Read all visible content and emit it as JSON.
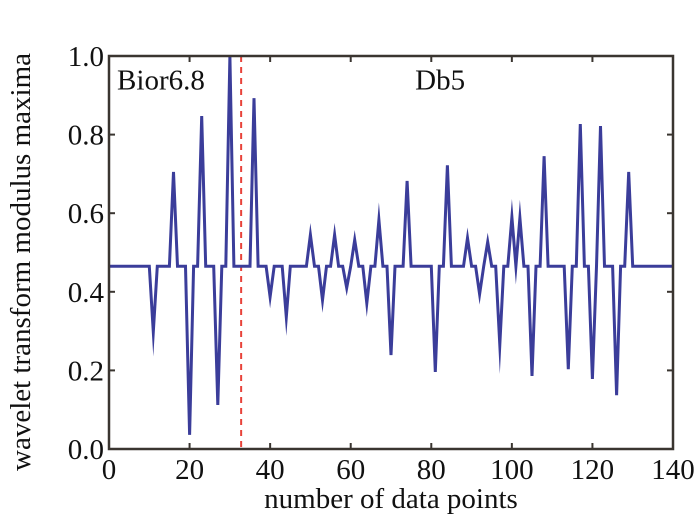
{
  "chart_data": {
    "type": "line",
    "title": "",
    "xlabel": "number of data points",
    "ylabel": "wavelet transform modulus maxima",
    "xlim": [
      0,
      140
    ],
    "ylim": [
      0.0,
      1.0
    ],
    "xticks": [
      0,
      20,
      40,
      60,
      80,
      100,
      120,
      140
    ],
    "xtick_labels": [
      "0",
      "20",
      "40",
      "60",
      "80",
      "100",
      "120",
      "140"
    ],
    "yticks": [
      0.0,
      0.2,
      0.4,
      0.6,
      0.8,
      1.0
    ],
    "ytick_labels": [
      "0.0",
      "0.2",
      "0.4",
      "0.6",
      "0.8",
      "1.0"
    ],
    "grid": false,
    "annotations": [
      {
        "text": "Bior6.8",
        "x": 2,
        "y": 0.94
      },
      {
        "text": "Db5",
        "x": 76,
        "y": 0.94
      }
    ],
    "divider": {
      "x": 32.8,
      "style": "dashed",
      "color": "#e8423a"
    },
    "series": [
      {
        "name": "modulus maxima",
        "color": "#3b3d9a",
        "x": [
          0,
          1,
          2,
          3,
          4,
          5,
          6,
          7,
          8,
          9,
          10,
          11,
          12,
          13,
          14,
          15,
          16,
          17,
          18,
          19,
          20,
          21,
          22,
          23,
          24,
          25,
          26,
          27,
          28,
          29,
          30,
          31,
          32,
          33,
          34,
          35,
          36,
          37,
          38,
          39,
          40,
          41,
          42,
          43,
          44,
          45,
          46,
          47,
          48,
          49,
          50,
          51,
          52,
          53,
          54,
          55,
          56,
          57,
          58,
          59,
          60,
          61,
          62,
          63,
          64,
          65,
          66,
          67,
          68,
          69,
          70,
          71,
          72,
          73,
          74,
          75,
          76,
          77,
          78,
          79,
          80,
          81,
          82,
          83,
          84,
          85,
          86,
          87,
          88,
          89,
          90,
          91,
          92,
          93,
          94,
          95,
          96,
          97,
          98,
          99,
          100,
          101,
          102,
          103,
          104,
          105,
          106,
          107,
          108,
          109,
          110,
          111,
          112,
          113,
          114,
          115,
          116,
          117,
          118,
          119,
          120,
          121,
          122,
          123,
          124,
          125,
          126,
          127,
          128,
          129,
          130,
          131,
          132,
          133,
          134,
          135,
          136,
          137,
          138,
          139,
          140
        ],
        "values": [
          0.465,
          0.465,
          0.465,
          0.465,
          0.465,
          0.465,
          0.465,
          0.465,
          0.465,
          0.465,
          0.465,
          0.298,
          0.465,
          0.465,
          0.465,
          0.465,
          0.705,
          0.465,
          0.465,
          0.465,
          0.036,
          0.465,
          0.465,
          0.847,
          0.465,
          0.465,
          0.465,
          0.112,
          0.465,
          0.465,
          1.0,
          0.465,
          0.465,
          0.465,
          0.465,
          0.465,
          0.893,
          0.465,
          0.465,
          0.465,
          0.387,
          0.465,
          0.465,
          0.465,
          0.336,
          0.465,
          0.465,
          0.465,
          0.465,
          0.465,
          0.545,
          0.465,
          0.465,
          0.379,
          0.465,
          0.465,
          0.545,
          0.465,
          0.465,
          0.41,
          0.465,
          0.532,
          0.465,
          0.465,
          0.371,
          0.465,
          0.465,
          0.583,
          0.465,
          0.465,
          0.239,
          0.465,
          0.465,
          0.465,
          0.682,
          0.465,
          0.465,
          0.465,
          0.465,
          0.465,
          0.465,
          0.196,
          0.465,
          0.465,
          0.722,
          0.465,
          0.465,
          0.465,
          0.465,
          0.537,
          0.465,
          0.465,
          0.394,
          0.465,
          0.527,
          0.465,
          0.465,
          0.265,
          0.465,
          0.465,
          0.59,
          0.465,
          0.588,
          0.465,
          0.465,
          0.186,
          0.465,
          0.465,
          0.745,
          0.465,
          0.465,
          0.465,
          0.465,
          0.465,
          0.203,
          0.465,
          0.465,
          0.827,
          0.465,
          0.465,
          0.178,
          0.465,
          0.822,
          0.465,
          0.465,
          0.465,
          0.137,
          0.465,
          0.465,
          0.705,
          0.465,
          0.465,
          0.465,
          0.465,
          0.465,
          0.465,
          0.465,
          0.465,
          0.465,
          0.465,
          0.465
        ]
      }
    ]
  },
  "colors": {
    "line": "#3b3d9a",
    "divider": "#e8423a",
    "axis": "#3a3530"
  }
}
